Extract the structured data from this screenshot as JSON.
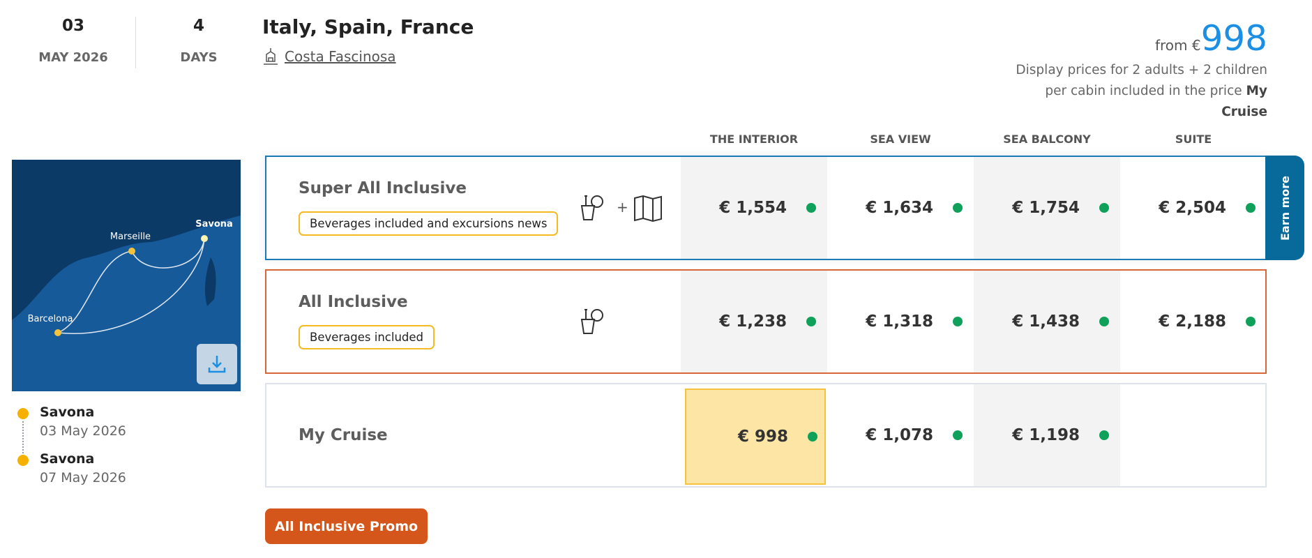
{
  "departure": {
    "day": "03",
    "month_year": "MAY 2026"
  },
  "duration": {
    "value": "4",
    "unit": "DAYS"
  },
  "title": "Italy, Spain, France",
  "ship": {
    "name": "Costa Fascinosa",
    "icon": "ship-icon"
  },
  "price": {
    "from_label": "from €",
    "value": "998",
    "desc": "Display prices for 2 adults + 2 children per cabin included in the price",
    "desc_bold": "My Cruise"
  },
  "columns": [
    "THE INTERIOR",
    "SEA VIEW",
    "SEA BALCONY",
    "SUITE"
  ],
  "rows": [
    {
      "name": "Super All Inclusive",
      "badge": "Beverages included and excursions news",
      "icons": [
        "beverage-icon",
        "plus",
        "map-icon"
      ],
      "prices": [
        "€ 1,554",
        "€ 1,634",
        "€ 1,754",
        "€ 2,504"
      ],
      "border": "#1a7ab5"
    },
    {
      "name": "All Inclusive",
      "badge": "Beverages included",
      "icons": [
        "beverage-icon"
      ],
      "prices": [
        "€ 1,238",
        "€ 1,318",
        "€ 1,438",
        "€ 2,188"
      ],
      "border": "#d9653a"
    },
    {
      "name": "My Cruise",
      "prices": [
        "€ 998",
        "€ 1,078",
        "€ 1,198",
        ""
      ],
      "border": "#dde3ea",
      "selected_col": 0
    }
  ],
  "earn_more": "Earn more",
  "promo_button": "All Inclusive Promo",
  "map": {
    "ports": [
      "Savona",
      "Marseille",
      "Barcelona"
    ]
  },
  "itinerary": [
    {
      "city": "Savona",
      "date": "03 May 2026"
    },
    {
      "city": "Savona",
      "date": "07 May 2026"
    }
  ],
  "colors": {
    "accent": "#1a8fe3",
    "available": "#0fa05a",
    "promo": "#d4561a",
    "earn": "#08699b",
    "selected": "#fde5a6"
  }
}
